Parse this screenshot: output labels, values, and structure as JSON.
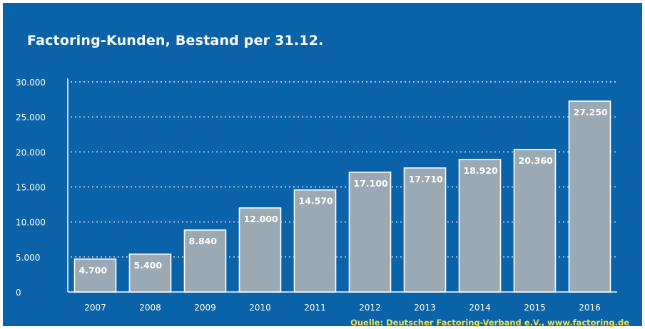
{
  "chart_data": {
    "type": "bar",
    "title": "Factoring-Kunden, Bestand per 31.12.",
    "categories": [
      "2007",
      "2008",
      "2009",
      "2010",
      "2011",
      "2012",
      "2013",
      "2014",
      "2015",
      "2016"
    ],
    "values": [
      4700,
      5400,
      8840,
      12000,
      14570,
      17100,
      17710,
      18920,
      20360,
      27250
    ],
    "value_labels": [
      "4.700",
      "5.400",
      "8.840",
      "12.000",
      "14.570",
      "17.100",
      "17.710",
      "18.920",
      "20.360",
      "27.250"
    ],
    "yticks": [
      0,
      5000,
      10000,
      15000,
      20000,
      25000,
      30000
    ],
    "ytick_labels": [
      "0",
      "5.000",
      "10.000",
      "15.000",
      "20.000",
      "25.000",
      "30.000"
    ],
    "ylim": [
      0,
      30000
    ],
    "xlabel": "",
    "ylabel": "",
    "grid": true,
    "colors": {
      "background": "#0a62a8",
      "bar": "#9aa9b3",
      "bar_border": "#ffffff",
      "text": "#ffffff",
      "source": "#f2e14a"
    }
  },
  "source": "Quelle: Deutscher Factoring-Verband e.V., www.factoring.de"
}
